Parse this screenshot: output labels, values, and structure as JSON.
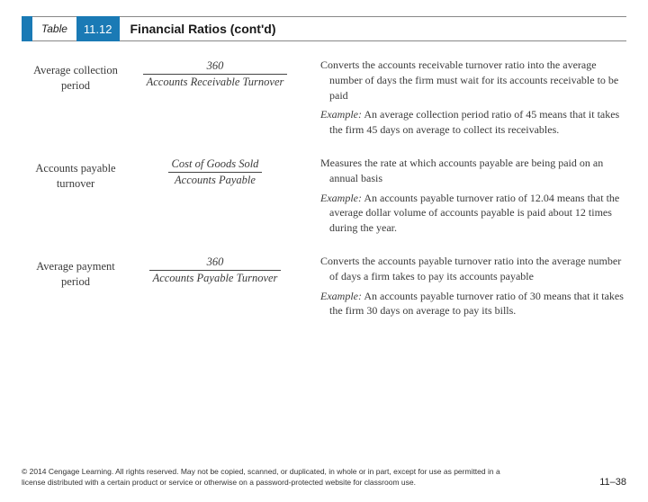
{
  "header": {
    "table_label": "Table",
    "table_number": "11.12",
    "title": "Financial Ratios (cont'd)"
  },
  "rows": [
    {
      "name_line1": "Average collection",
      "name_line2": "period",
      "formula_num": "360",
      "formula_den": "Accounts Receivable Turnover",
      "desc": "Converts the accounts receivable turnover ratio into the average number of days the firm must wait for its accounts receivable to be paid",
      "example": "An average collection period ratio of 45 means that it takes the firm 45 days on average to collect its receivables."
    },
    {
      "name_line1": "Accounts payable",
      "name_line2": "turnover",
      "formula_num": "Cost of Goods Sold",
      "formula_den": "Accounts Payable",
      "desc": "Measures the rate at which accounts payable are being paid on an annual basis",
      "example": "An accounts payable turnover ratio of 12.04 means that the average dollar volume of accounts payable is paid about 12 times during the year."
    },
    {
      "name_line1": "Average payment",
      "name_line2": "period",
      "formula_num": "360",
      "formula_den": "Accounts Payable Turnover",
      "desc": "Converts the accounts payable turnover ratio into the average number of days a firm takes to pay its accounts payable",
      "example": "An accounts payable turnover ratio of 30 means that it takes the firm 30 days on average to pay its bills."
    }
  ],
  "footer": {
    "copyright": "© 2014 Cengage Learning. All rights reserved. May not be copied, scanned, or duplicated, in whole or in part, except for use as permitted in a license distributed with a certain product or service or otherwise on a password-protected website for classroom use.",
    "page": "11–38"
  },
  "example_label": "Example:"
}
